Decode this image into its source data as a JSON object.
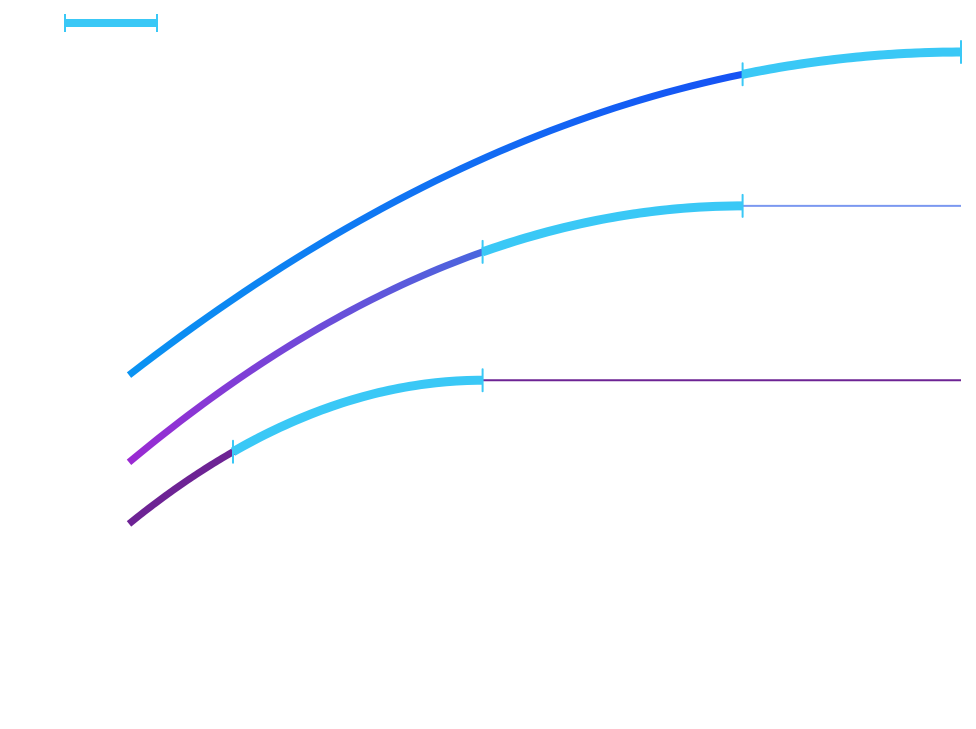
{
  "chart_data": {
    "type": "line",
    "title": "",
    "xlabel": "",
    "ylabel": "",
    "grid": false,
    "legend": {
      "placement": "top-left",
      "entries": [
        {
          "name": "",
          "color": "#3ac8f6"
        }
      ]
    },
    "xlim": [
      0,
      8
    ],
    "ylim": [
      0,
      7
    ],
    "colors": {
      "highlight": "#3ac8f6",
      "top_gradient_start": "#0a93f2",
      "top_gradient_end": "#1652f4",
      "middle_gradient_start": "#9a2ad2",
      "middle_gradient_end": "#4a66de",
      "bottom_color": "#6d2394",
      "middle_tail": "#7b98f0",
      "bottom_tail": "#6d2394"
    },
    "series": [
      {
        "key": "top",
        "curve": {
          "y0": 3.45,
          "ymax": 6.6,
          "xpeak": 8.0
        },
        "segments": [
          {
            "from": 0.0,
            "to": 5.9,
            "style": "gradient",
            "colorStart": "#0a93f2",
            "colorEnd": "#1652f4"
          },
          {
            "from": 5.9,
            "to": 8.0,
            "style": "highlight",
            "color": "#3ac8f6"
          }
        ],
        "markers": [
          5.9,
          8.0
        ]
      },
      {
        "key": "middle",
        "curve": {
          "y0": 2.6,
          "ymax": 5.1,
          "xpeak": 5.9
        },
        "segments": [
          {
            "from": 0.0,
            "to": 3.4,
            "style": "gradient",
            "colorStart": "#9a2ad2",
            "colorEnd": "#4a66de"
          },
          {
            "from": 3.4,
            "to": 5.9,
            "style": "highlight",
            "color": "#3ac8f6"
          }
        ],
        "tail": {
          "from": 5.9,
          "to": 8.0,
          "y": 5.1,
          "color": "#7b98f0"
        },
        "markers": [
          3.4,
          5.9
        ]
      },
      {
        "key": "bottom",
        "curve": {
          "y0": 2.0,
          "ymax": 3.4,
          "xpeak": 3.4
        },
        "segments": [
          {
            "from": 0.0,
            "to": 1.0,
            "style": "solid",
            "color": "#6d2394"
          },
          {
            "from": 1.0,
            "to": 3.4,
            "style": "highlight",
            "color": "#3ac8f6"
          }
        ],
        "tail": {
          "from": 3.4,
          "to": 8.0,
          "y": 3.4,
          "color": "#6d2394"
        },
        "markers": [
          1.0,
          3.4
        ]
      }
    ]
  }
}
